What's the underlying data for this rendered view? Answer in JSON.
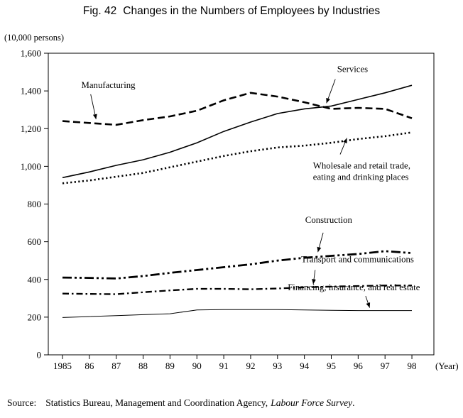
{
  "header": {
    "fig": "Fig. 42",
    "title": "Changes in the Numbers of Employees by Industries"
  },
  "source": {
    "label": "Source:",
    "text": "Statistics Bureau, Management and Coordination Agency,",
    "work": "Labour Force Survey",
    "suffix": "."
  },
  "chart_data": {
    "type": "line",
    "title": "Fig. 42 Changes in the Numbers of Employees by Industries",
    "y_axis_label": "(10,000 persons)",
    "x_axis_label": "(Year)",
    "ylim": [
      0,
      1600
    ],
    "grid": false,
    "legend": "inline-annotations",
    "y_ticks": [
      {
        "label": "0",
        "value": 0
      },
      {
        "label": "200",
        "value": 200
      },
      {
        "label": "400",
        "value": 400
      },
      {
        "label": "600",
        "value": 600
      },
      {
        "label": "800",
        "value": 800
      },
      {
        "label": "1,000",
        "value": 1000
      },
      {
        "label": "1,200",
        "value": 1200
      },
      {
        "label": "1,400",
        "value": 1400
      },
      {
        "label": "1,600",
        "value": 1600
      }
    ],
    "x_labels": [
      "1985",
      "86",
      "87",
      "88",
      "89",
      "90",
      "91",
      "92",
      "93",
      "94",
      "95",
      "96",
      "97",
      "98"
    ],
    "series": [
      {
        "name": "Manufacturing",
        "style": "dashed",
        "width": 2.6,
        "values": [
          1240,
          1230,
          1220,
          1245,
          1265,
          1295,
          1350,
          1390,
          1370,
          1340,
          1305,
          1310,
          1305,
          1255
        ]
      },
      {
        "name": "Services",
        "style": "solid",
        "width": 1.6,
        "values": [
          940,
          970,
          1005,
          1035,
          1075,
          1125,
          1185,
          1235,
          1280,
          1305,
          1320,
          1355,
          1390,
          1430
        ]
      },
      {
        "name": "Wholesale and retail trade, eating and drinking places",
        "style": "dotted",
        "width": 2.6,
        "values": [
          910,
          925,
          945,
          965,
          995,
          1025,
          1055,
          1080,
          1100,
          1110,
          1125,
          1145,
          1160,
          1180
        ]
      },
      {
        "name": "Construction",
        "style": "dashdotdot",
        "width": 2.8,
        "values": [
          410,
          408,
          405,
          418,
          435,
          450,
          465,
          480,
          500,
          515,
          525,
          535,
          550,
          540
        ]
      },
      {
        "name": "Transport and communications",
        "style": "dashdot",
        "width": 2.3,
        "values": [
          325,
          323,
          322,
          332,
          342,
          350,
          350,
          348,
          352,
          358,
          362,
          365,
          368,
          368
        ]
      },
      {
        "name": "Financing, insurance, and real estate",
        "style": "thinsolid",
        "width": 1,
        "values": [
          198,
          203,
          208,
          213,
          218,
          238,
          240,
          240,
          240,
          238,
          236,
          235,
          235,
          235
        ]
      }
    ],
    "annotations": [
      {
        "lines": [
          "Manufacturing"
        ],
        "anchor": "start",
        "label": [
          0.7,
          1415
        ],
        "leader": {
          "from": [
            1.05,
            1382
          ],
          "to": [
            1.25,
            1250
          ]
        }
      },
      {
        "lines": [
          "Services"
        ],
        "anchor": "start",
        "label": [
          10.22,
          1500
        ],
        "leader": {
          "from": [
            10.15,
            1462
          ],
          "to": [
            9.82,
            1335
          ]
        }
      },
      {
        "lines": [
          "Wholesale and retail trade,",
          "eating and drinking places"
        ],
        "anchor": "start",
        "label": [
          9.32,
          988
        ],
        "leader": {
          "from": [
            10.33,
            1063
          ],
          "to": [
            10.58,
            1150
          ]
        }
      },
      {
        "lines": [
          "Construction"
        ],
        "anchor": "start",
        "label": [
          9.03,
          700
        ],
        "leader": {
          "from": [
            9.7,
            648
          ],
          "to": [
            9.5,
            545
          ]
        }
      },
      {
        "lines": [
          "Transport and communications"
        ],
        "anchor": "start",
        "label": [
          8.88,
          492
        ],
        "leader": {
          "from": [
            9.4,
            450
          ],
          "to": [
            9.33,
            375
          ]
        }
      },
      {
        "lines": [
          "Financing, insurance, and real estate"
        ],
        "anchor": "start",
        "label": [
          8.38,
          342
        ],
        "leader": {
          "from": [
            11.28,
            312
          ],
          "to": [
            11.43,
            250
          ]
        }
      }
    ]
  }
}
